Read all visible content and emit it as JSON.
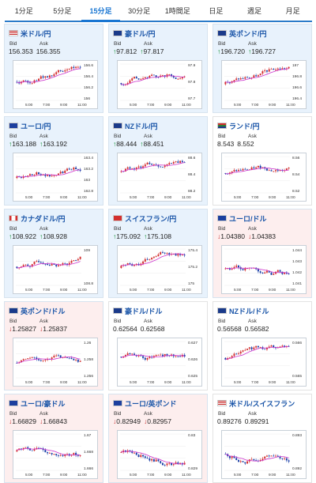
{
  "tabs": [
    {
      "label": "1分足",
      "active": false
    },
    {
      "label": "5分足",
      "active": false
    },
    {
      "label": "15分足",
      "active": true
    },
    {
      "label": "30分足",
      "active": false
    },
    {
      "label": "1時間足",
      "active": false
    },
    {
      "label": "日足",
      "active": false
    },
    {
      "label": "週足",
      "active": false
    },
    {
      "label": "月足",
      "active": false
    }
  ],
  "bid_label": "Bid",
  "ask_label": "Ask",
  "x_ticks": [
    "5:00",
    "7:00",
    "9:00",
    "11:00"
  ],
  "colors": {
    "up": "#e8f2fc",
    "down": "#fdeeee",
    "candle_up": "#d32f2f",
    "candle_down": "#1a3fa8",
    "ma": "#cc33cc"
  },
  "cards": [
    {
      "pair": "米ドル/円",
      "flag": "us-flag",
      "trend": "up",
      "dir": "",
      "bid": "156.353",
      "ask": "156.355",
      "yticks": [
        "156.6",
        "156.4",
        "156.2",
        "156"
      ],
      "seed": 1
    },
    {
      "pair": "豪ドル/円",
      "flag": "au-flag",
      "trend": "up",
      "dir": "up",
      "bid": "97.812",
      "ask": "97.817",
      "yticks": [
        "97.9",
        "97.8",
        "97.7"
      ],
      "seed": 2
    },
    {
      "pair": "英ポンド/円",
      "flag": "uk-flag",
      "trend": "up",
      "dir": "up",
      "bid": "196.720",
      "ask": "196.727",
      "yticks": [
        "197",
        "196.8",
        "196.6",
        "196.4"
      ],
      "seed": 3
    },
    {
      "pair": "ユーロ/円",
      "flag": "eu-flag",
      "trend": "up",
      "dir": "up",
      "bid": "163.188",
      "ask": "163.192",
      "yticks": [
        "163.4",
        "163.2",
        "163",
        "162.8"
      ],
      "seed": 4
    },
    {
      "pair": "NZドル/円",
      "flag": "nz-flag",
      "trend": "up",
      "dir": "up",
      "bid": "88.444",
      "ask": "88.451",
      "yticks": [
        "88.6",
        "88.4",
        "88.2"
      ],
      "seed": 5
    },
    {
      "pair": "ランド/円",
      "flag": "za-flag",
      "trend": "flat",
      "dir": "",
      "bid": "8.543",
      "ask": "8.552",
      "yticks": [
        "8.56",
        "8.54",
        "8.52"
      ],
      "seed": 6
    },
    {
      "pair": "カナダドル/円",
      "flag": "ca-flag",
      "trend": "up",
      "dir": "up",
      "bid": "108.922",
      "ask": "108.928",
      "yticks": [
        "109",
        "108.8"
      ],
      "seed": 7
    },
    {
      "pair": "スイスフラン/円",
      "flag": "ch-flag",
      "trend": "up",
      "dir": "up",
      "bid": "175.092",
      "ask": "175.108",
      "yticks": [
        "175.4",
        "175.2",
        "175"
      ],
      "seed": 8
    },
    {
      "pair": "ユーロ/ドル",
      "flag": "eu-flag",
      "trend": "down",
      "dir": "down",
      "bid": "1.04380",
      "ask": "1.04383",
      "yticks": [
        "1.044",
        "1.043",
        "1.042",
        "1.041"
      ],
      "seed": 9
    },
    {
      "pair": "英ポンド/ドル",
      "flag": "uk-flag",
      "trend": "down",
      "dir": "down",
      "bid": "1.25827",
      "ask": "1.25837",
      "yticks": [
        "1.26",
        "1.258",
        "1.256"
      ],
      "seed": 10
    },
    {
      "pair": "豪ドル/ドル",
      "flag": "au-flag",
      "trend": "flat",
      "dir": "",
      "bid": "0.62564",
      "ask": "0.62568",
      "yticks": [
        "0.627",
        "0.626",
        "0.625"
      ],
      "seed": 11
    },
    {
      "pair": "NZドル/ドル",
      "flag": "nz-flag",
      "trend": "flat",
      "dir": "",
      "bid": "0.56568",
      "ask": "0.56582",
      "yticks": [
        "0.566",
        "0.565"
      ],
      "seed": 12
    },
    {
      "pair": "ユーロ/豪ドル",
      "flag": "eu-flag",
      "trend": "down",
      "dir": "down",
      "bid": "1.66829",
      "ask": "1.66843",
      "yticks": [
        "1.67",
        "1.668",
        "1.666"
      ],
      "seed": 13
    },
    {
      "pair": "ユーロ/英ポンド",
      "flag": "eu-flag",
      "trend": "down",
      "dir": "down",
      "bid": "0.82949",
      "ask": "0.82957",
      "yticks": [
        "0.83",
        "0.829"
      ],
      "seed": 14
    },
    {
      "pair": "米ドル/スイスフラン",
      "flag": "us-flag",
      "trend": "flat",
      "dir": "",
      "bid": "0.89276",
      "ask": "0.89291",
      "yticks": [
        "0.893",
        "0.892"
      ],
      "seed": 15
    }
  ]
}
